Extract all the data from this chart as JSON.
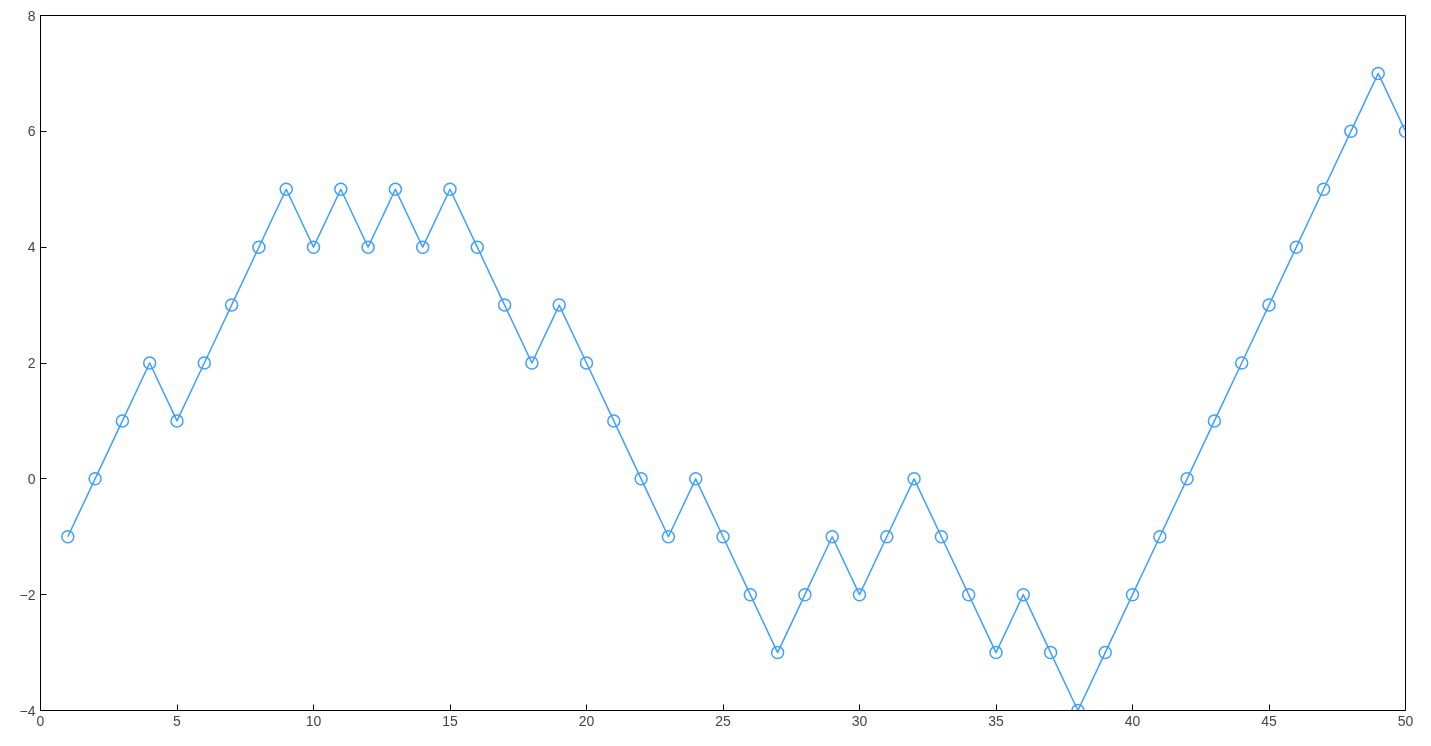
{
  "chart_data": {
    "type": "line",
    "marker": "circle",
    "line_style": "solid",
    "grid": false,
    "x": [
      1,
      2,
      3,
      4,
      5,
      6,
      7,
      8,
      9,
      10,
      11,
      12,
      13,
      14,
      15,
      16,
      17,
      18,
      19,
      20,
      21,
      22,
      23,
      24,
      25,
      26,
      27,
      28,
      29,
      30,
      31,
      32,
      33,
      34,
      35,
      36,
      37,
      38,
      39,
      40,
      41,
      42,
      43,
      44,
      45,
      46,
      47,
      48,
      49,
      50
    ],
    "series": [
      {
        "color": "#3f9fff",
        "values": [
          -1,
          0,
          1,
          2,
          1,
          2,
          3,
          4,
          5,
          4,
          5,
          4,
          5,
          4,
          5,
          4,
          3,
          2,
          3,
          2,
          1,
          0,
          -1,
          0,
          -1,
          -2,
          -3,
          -2,
          -1,
          -2,
          -1,
          0,
          -1,
          -2,
          -3,
          -2,
          -3,
          -4,
          -3,
          -2,
          -1,
          0,
          1,
          2,
          3,
          4,
          5,
          6,
          7,
          6
        ]
      }
    ],
    "xlim": [
      0,
      50
    ],
    "ylim": [
      -4,
      8
    ],
    "xticks": [
      0,
      5,
      10,
      15,
      20,
      25,
      30,
      35,
      40,
      45,
      50
    ],
    "yticks": [
      -4,
      -2,
      0,
      2,
      4,
      6,
      8
    ]
  }
}
